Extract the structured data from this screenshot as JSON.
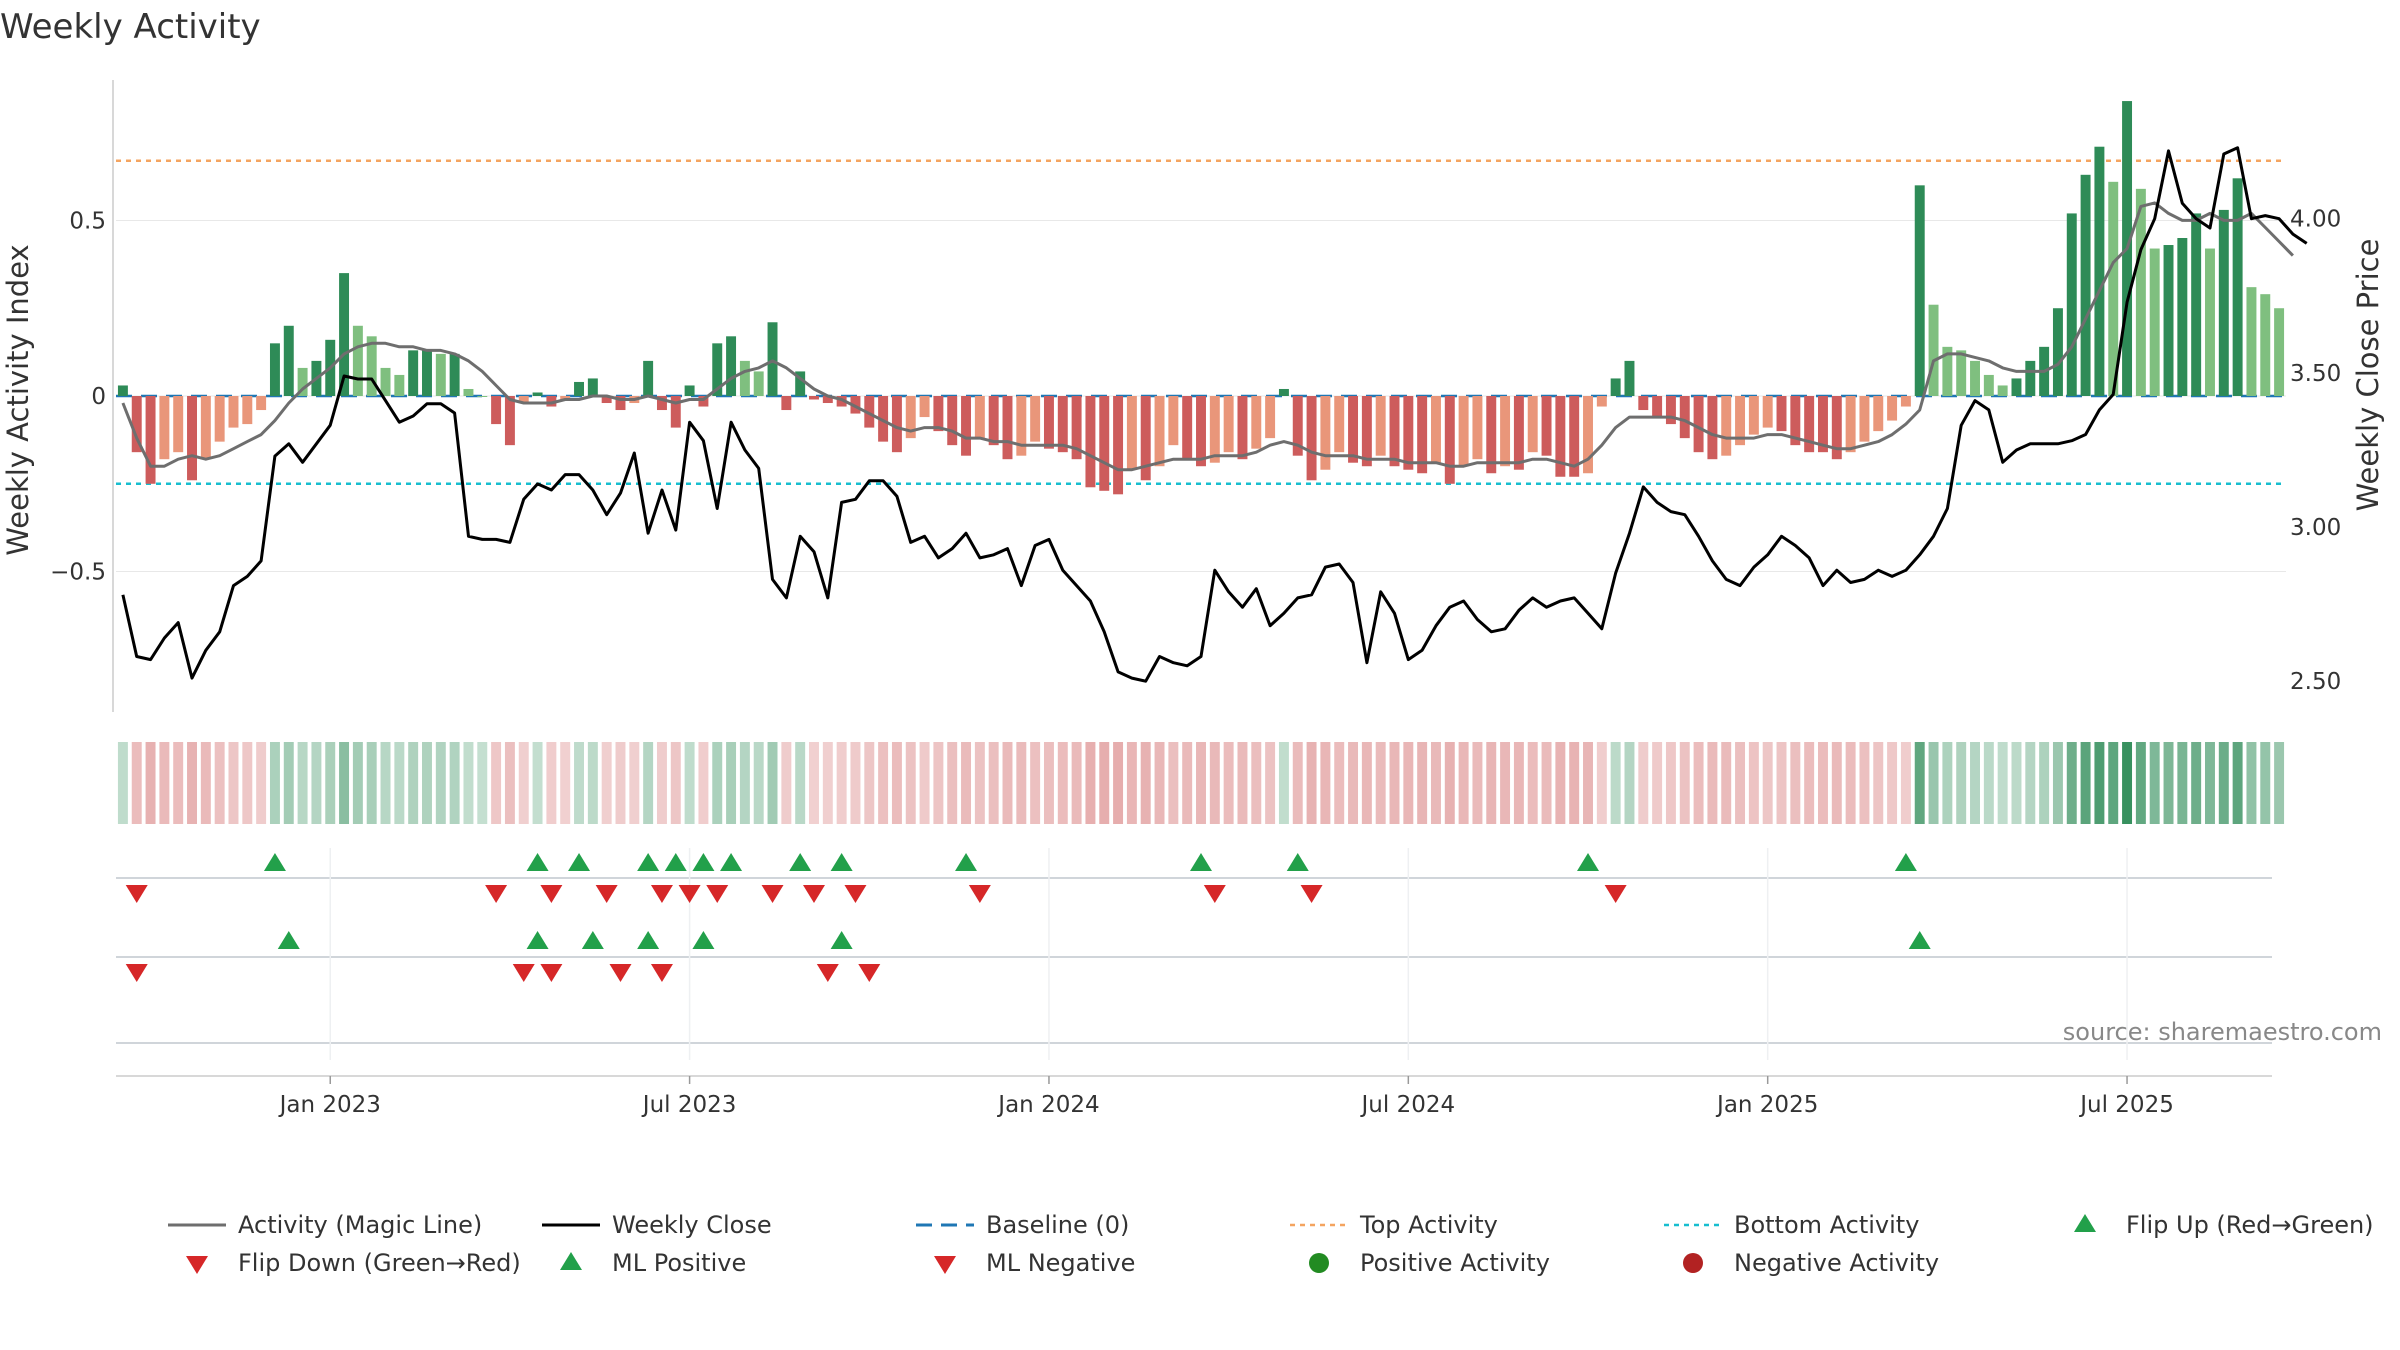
{
  "chart_data": {
    "type": "bar",
    "title": "Weekly Activity",
    "ylabel": "Weekly Activity Index",
    "y2label": "Weekly Close Price",
    "ylim": [
      -0.9,
      0.9
    ],
    "y2lim": [
      2.4,
      4.45
    ],
    "y_ticks": [
      {
        "v": 0.5,
        "label": "0.5"
      },
      {
        "v": 0,
        "label": "0"
      },
      {
        "v": -0.5,
        "label": "−0.5"
      }
    ],
    "y2_ticks": [
      {
        "v": 4.0,
        "label": "4.00"
      },
      {
        "v": 3.5,
        "label": "3.50"
      },
      {
        "v": 3.0,
        "label": "3.00"
      },
      {
        "v": 2.5,
        "label": "2.50"
      }
    ],
    "x_ticks": [
      {
        "week": 15,
        "label": "Jan 2023"
      },
      {
        "week": 41,
        "label": "Jul 2023"
      },
      {
        "week": 67,
        "label": "Jan 2024"
      },
      {
        "week": 93,
        "label": "Jul 2024"
      },
      {
        "week": 119,
        "label": "Jan 2025"
      },
      {
        "week": 145,
        "label": "Jul 2025"
      }
    ],
    "weeks": 157,
    "top_activity": 0.67,
    "bottom_activity": -0.25,
    "baseline": 0,
    "activity": [
      0.03,
      -0.16,
      -0.25,
      -0.18,
      -0.16,
      -0.24,
      -0.18,
      -0.13,
      -0.09,
      -0.08,
      -0.04,
      0.15,
      0.2,
      0.08,
      0.1,
      0.16,
      0.35,
      0.2,
      0.17,
      0.08,
      0.06,
      0.13,
      0.13,
      0.12,
      0.12,
      0.02,
      0,
      -0.08,
      -0.14,
      -0.02,
      0.01,
      -0.03,
      -0.01,
      0.04,
      0.05,
      -0.02,
      -0.04,
      -0.02,
      0.1,
      -0.04,
      -0.09,
      0.03,
      -0.03,
      0.15,
      0.17,
      0.1,
      0.07,
      0.21,
      -0.04,
      0.07,
      -0.01,
      -0.02,
      -0.03,
      -0.05,
      -0.09,
      -0.13,
      -0.16,
      -0.12,
      -0.06,
      -0.1,
      -0.14,
      -0.17,
      -0.12,
      -0.14,
      -0.18,
      -0.17,
      -0.13,
      -0.15,
      -0.16,
      -0.18,
      -0.26,
      -0.27,
      -0.28,
      -0.21,
      -0.24,
      -0.2,
      -0.14,
      -0.18,
      -0.2,
      -0.19,
      -0.16,
      -0.18,
      -0.15,
      -0.12,
      0.02,
      -0.17,
      -0.24,
      -0.21,
      -0.16,
      -0.19,
      -0.2,
      -0.17,
      -0.2,
      -0.21,
      -0.22,
      -0.19,
      -0.25,
      -0.2,
      -0.18,
      -0.22,
      -0.2,
      -0.21,
      -0.16,
      -0.17,
      -0.23,
      -0.23,
      -0.22,
      -0.03,
      0.05,
      0.1,
      -0.04,
      -0.06,
      -0.08,
      -0.12,
      -0.16,
      -0.18,
      -0.17,
      -0.14,
      -0.11,
      -0.09,
      -0.1,
      -0.14,
      -0.16,
      -0.16,
      -0.18,
      -0.16,
      -0.13,
      -0.1,
      -0.07,
      -0.03,
      0.6,
      0.26,
      0.14,
      0.13,
      0.1,
      0.06,
      0.03,
      0.05,
      0.1,
      0.14,
      0.25,
      0.52,
      0.63,
      0.71,
      0.61,
      0.84,
      0.59,
      0.42,
      0.43,
      0.45,
      0.52,
      0.42,
      0.53,
      0.62,
      0.31,
      0.29,
      0.25
    ],
    "magic_line": [
      -0.02,
      -0.12,
      -0.2,
      -0.2,
      -0.18,
      -0.17,
      -0.18,
      -0.17,
      -0.15,
      -0.13,
      -0.11,
      -0.07,
      -0.02,
      0.02,
      0.05,
      0.08,
      0.12,
      0.14,
      0.15,
      0.15,
      0.14,
      0.14,
      0.13,
      0.13,
      0.12,
      0.1,
      0.07,
      0.03,
      -0.01,
      -0.02,
      -0.02,
      -0.02,
      -0.01,
      -0.01,
      0,
      0,
      -0.01,
      -0.01,
      0,
      -0.01,
      -0.02,
      -0.01,
      -0.01,
      0.02,
      0.05,
      0.07,
      0.08,
      0.1,
      0.08,
      0.05,
      0.02,
      0,
      -0.01,
      -0.03,
      -0.05,
      -0.07,
      -0.09,
      -0.1,
      -0.09,
      -0.09,
      -0.1,
      -0.12,
      -0.12,
      -0.13,
      -0.13,
      -0.14,
      -0.14,
      -0.14,
      -0.14,
      -0.15,
      -0.17,
      -0.19,
      -0.21,
      -0.21,
      -0.2,
      -0.19,
      -0.18,
      -0.18,
      -0.18,
      -0.17,
      -0.17,
      -0.17,
      -0.16,
      -0.14,
      -0.13,
      -0.14,
      -0.16,
      -0.17,
      -0.17,
      -0.17,
      -0.18,
      -0.18,
      -0.18,
      -0.19,
      -0.19,
      -0.19,
      -0.2,
      -0.2,
      -0.19,
      -0.19,
      -0.19,
      -0.19,
      -0.18,
      -0.18,
      -0.19,
      -0.2,
      -0.18,
      -0.14,
      -0.09,
      -0.06,
      -0.06,
      -0.06,
      -0.06,
      -0.07,
      -0.09,
      -0.11,
      -0.12,
      -0.12,
      -0.12,
      -0.11,
      -0.11,
      -0.12,
      -0.13,
      -0.14,
      -0.15,
      -0.15,
      -0.14,
      -0.13,
      -0.11,
      -0.08,
      -0.04,
      0.1,
      0.12,
      0.12,
      0.11,
      0.1,
      0.08,
      0.07,
      0.07,
      0.07,
      0.09,
      0.14,
      0.22,
      0.3,
      0.38,
      0.42,
      0.54,
      0.55,
      0.52,
      0.5,
      0.5,
      0.52,
      0.5,
      0.5,
      0.52,
      0.48,
      0.44,
      0.4
    ],
    "weekly_close": [
      2.78,
      2.58,
      2.57,
      2.64,
      2.69,
      2.51,
      2.6,
      2.66,
      2.81,
      2.84,
      2.89,
      3.23,
      3.27,
      3.21,
      3.27,
      3.33,
      3.49,
      3.48,
      3.48,
      3.41,
      3.34,
      3.36,
      3.4,
      3.4,
      3.37,
      2.97,
      2.96,
      2.96,
      2.95,
      3.09,
      3.14,
      3.12,
      3.17,
      3.17,
      3.12,
      3.04,
      3.11,
      3.24,
      2.98,
      3.12,
      2.99,
      3.34,
      3.28,
      3.06,
      3.34,
      3.25,
      3.19,
      2.83,
      2.77,
      2.97,
      2.92,
      2.77,
      3.08,
      3.09,
      3.15,
      3.15,
      3.1,
      2.95,
      2.97,
      2.9,
      2.93,
      2.98,
      2.9,
      2.91,
      2.93,
      2.81,
      2.94,
      2.96,
      2.86,
      2.81,
      2.76,
      2.66,
      2.53,
      2.51,
      2.5,
      2.58,
      2.56,
      2.55,
      2.58,
      2.86,
      2.79,
      2.74,
      2.8,
      2.68,
      2.72,
      2.77,
      2.78,
      2.87,
      2.88,
      2.82,
      2.56,
      2.79,
      2.72,
      2.57,
      2.6,
      2.68,
      2.74,
      2.76,
      2.7,
      2.66,
      2.67,
      2.73,
      2.77,
      2.74,
      2.76,
      2.77,
      2.72,
      2.67,
      2.85,
      2.98,
      3.13,
      3.08,
      3.05,
      3.04,
      2.97,
      2.89,
      2.83,
      2.81,
      2.87,
      2.91,
      2.97,
      2.94,
      2.9,
      2.81,
      2.86,
      2.82,
      2.83,
      2.86,
      2.84,
      2.86,
      2.91,
      2.97,
      3.06,
      3.33,
      3.41,
      3.38,
      3.21,
      3.25,
      3.27,
      3.27,
      3.27,
      3.28,
      3.3,
      3.38,
      3.43,
      3.73,
      3.9,
      4.0,
      4.22,
      4.05,
      4.0,
      3.97,
      4.21,
      4.23,
      4.0,
      4.01,
      4.0,
      3.95,
      3.92
    ],
    "flip_up": [
      11,
      30,
      33,
      38,
      40,
      42,
      44,
      49,
      52,
      61,
      78,
      85,
      106,
      129
    ],
    "flip_down": [
      1,
      27,
      31,
      35,
      39,
      41,
      43,
      47,
      50,
      53,
      62,
      79,
      86,
      108
    ],
    "ml_positive": [
      12,
      30,
      34,
      38,
      42,
      52,
      130
    ],
    "ml_negative": [
      1,
      29,
      31,
      36,
      39,
      51,
      54
    ],
    "legend": [
      {
        "key": "magic_line",
        "label": "Activity (Magic Line)"
      },
      {
        "key": "weekly_close",
        "label": "Weekly Close"
      },
      {
        "key": "baseline",
        "label": "Baseline (0)"
      },
      {
        "key": "top_activity",
        "label": "Top Activity"
      },
      {
        "key": "bottom_activity",
        "label": "Bottom Activity"
      },
      {
        "key": "flip_up",
        "label": "Flip Up (Red→Green)"
      },
      {
        "key": "flip_down",
        "label": "Flip Down (Green→Red)"
      },
      {
        "key": "ml_positive",
        "label": "ML Positive"
      },
      {
        "key": "ml_negative",
        "label": "ML Negative"
      },
      {
        "key": "positive_activity",
        "label": "Positive Activity"
      },
      {
        "key": "negative_activity",
        "label": "Negative Activity"
      }
    ],
    "source": "source: sharemaestro.com"
  },
  "colors": {
    "pos_strong": "#2e8b57",
    "pos_light": "#7fbf7f",
    "neg_strong": "#cd5c5c",
    "neg_light": "#e9967a",
    "magic_line": "#6e6e6e",
    "close_line": "#000000",
    "baseline": "#1f77b4",
    "top": "#f4a460",
    "bottom": "#17becf",
    "flip_up": "#22a04a",
    "flip_down": "#d62728",
    "pos_dot": "#228b22",
    "neg_dot": "#b22222",
    "grid": "#e8e8e8",
    "axis": "#cccccc"
  }
}
